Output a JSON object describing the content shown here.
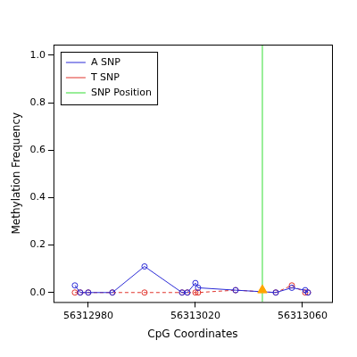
{
  "chart_data": {
    "type": "scatter",
    "x_label": "CpG Coordinates",
    "y_label": "Methylation Frequency",
    "xlim": [
      56312967,
      56313071
    ],
    "xticks": [
      56312980,
      56313020,
      56313060
    ],
    "ylim": [
      -0.04,
      1.045
    ],
    "yticks": [
      {
        "value": 0,
        "label": "0.0"
      },
      {
        "value": 0.2,
        "label": "0.2"
      },
      {
        "value": 0.4,
        "label": "0.4"
      },
      {
        "value": 0.6,
        "label": "0.6"
      },
      {
        "value": 0.8,
        "label": "0.8"
      },
      {
        "value": 1,
        "label": "1.0"
      }
    ],
    "grid": false,
    "legend": "top-left",
    "series": [
      {
        "name": "A SNP",
        "color": "#2b2bd6",
        "marker": "circle",
        "line_style": "solid",
        "x": [
          56312975,
          56312977,
          56312980,
          56312989,
          56313001,
          56313015,
          56313017,
          56313020,
          56313021,
          56313035,
          56313050,
          56313056,
          56313061,
          56313062
        ],
        "values": [
          0.03,
          0,
          0,
          0,
          0.11,
          0,
          0,
          0.04,
          0.02,
          0.01,
          0,
          0.02,
          0.01,
          0
        ]
      },
      {
        "name": "T SNP",
        "color": "#e0332b",
        "marker": "circle",
        "line_style": "dashed",
        "x": [
          56312975,
          56312977,
          56312980,
          56312989,
          56313001,
          56313015,
          56313017,
          56313020,
          56313021,
          56313035,
          56313050,
          56313056,
          56313061,
          56313062
        ],
        "values": [
          0,
          0,
          0,
          0,
          0,
          0,
          0,
          0,
          0,
          0.01,
          0,
          0.03,
          0,
          0
        ]
      },
      {
        "name": "SNP Position",
        "color": "#33dd33",
        "marker": "none",
        "line_style": "solid",
        "x": [
          56313045,
          56313045
        ],
        "values": [
          -0.04,
          1.045
        ]
      },
      {
        "color": "#ffa500",
        "marker": "triangle",
        "line_style": "none",
        "x": [
          56313045
        ],
        "values": [
          0.01
        ]
      }
    ]
  }
}
